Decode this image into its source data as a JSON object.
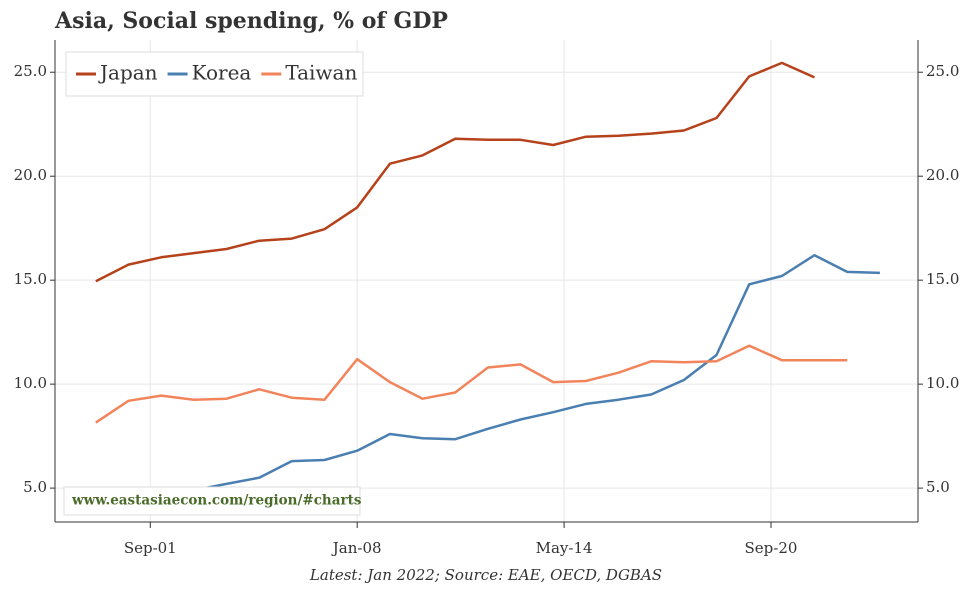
{
  "chart_data": {
    "type": "line",
    "title": "Asia, Social spending, % of GDP",
    "caption": "Latest: Jan 2022; Source: EAE, OECD, DGBAS",
    "watermark": "www.eastasiaecon.com/region/#charts",
    "x": [
      "2000-01",
      "2001-01",
      "2002-01",
      "2003-01",
      "2004-01",
      "2005-01",
      "2006-01",
      "2007-01",
      "2008-01",
      "2009-01",
      "2010-01",
      "2011-01",
      "2012-01",
      "2013-01",
      "2014-01",
      "2015-01",
      "2016-01",
      "2017-01",
      "2018-01",
      "2019-01",
      "2020-01",
      "2021-01",
      "2022-01",
      "2023-01",
      "2024-01"
    ],
    "series": [
      {
        "name": "Japan",
        "color": "#b5421b",
        "values": [
          14.95,
          15.75,
          16.1,
          16.3,
          16.5,
          16.9,
          17.0,
          17.45,
          18.5,
          20.6,
          21.0,
          21.8,
          21.75,
          21.75,
          21.5,
          21.9,
          21.95,
          22.05,
          22.2,
          22.8,
          24.8,
          25.45,
          24.75,
          null,
          null
        ]
      },
      {
        "name": "Korea",
        "color": "#4a7fb1",
        "values": [
          null,
          null,
          null,
          4.9,
          5.2,
          5.5,
          6.3,
          6.35,
          6.8,
          7.6,
          7.4,
          7.35,
          7.85,
          8.3,
          8.65,
          9.05,
          9.25,
          9.5,
          10.2,
          11.4,
          14.8,
          15.2,
          16.2,
          15.4,
          15.35
        ]
      },
      {
        "name": "Taiwan",
        "color": "#f2845c",
        "values": [
          8.15,
          9.2,
          9.45,
          9.25,
          9.3,
          9.75,
          9.35,
          9.25,
          11.2,
          10.1,
          9.3,
          9.6,
          10.8,
          10.95,
          10.1,
          10.15,
          10.55,
          11.1,
          11.05,
          11.1,
          11.85,
          11.15,
          11.15,
          11.15,
          null
        ]
      }
    ],
    "xlim": [
      "1998-10",
      "2025-03"
    ],
    "xticks": [
      {
        "value": "2001-09",
        "label": "Sep-01"
      },
      {
        "value": "2008-01",
        "label": "Jan-08"
      },
      {
        "value": "2014-05",
        "label": "May-14"
      },
      {
        "value": "2020-09",
        "label": "Sep-20"
      }
    ],
    "ylim": [
      3.37,
      26.55
    ],
    "yticks": [
      {
        "value": 5,
        "label": "5.0"
      },
      {
        "value": 10,
        "label": "10.0"
      },
      {
        "value": 15,
        "label": "15.0"
      },
      {
        "value": 20,
        "label": "20.0"
      },
      {
        "value": 25,
        "label": "25.0"
      }
    ],
    "grid": true,
    "legend": "upper left",
    "right_axis": true
  }
}
